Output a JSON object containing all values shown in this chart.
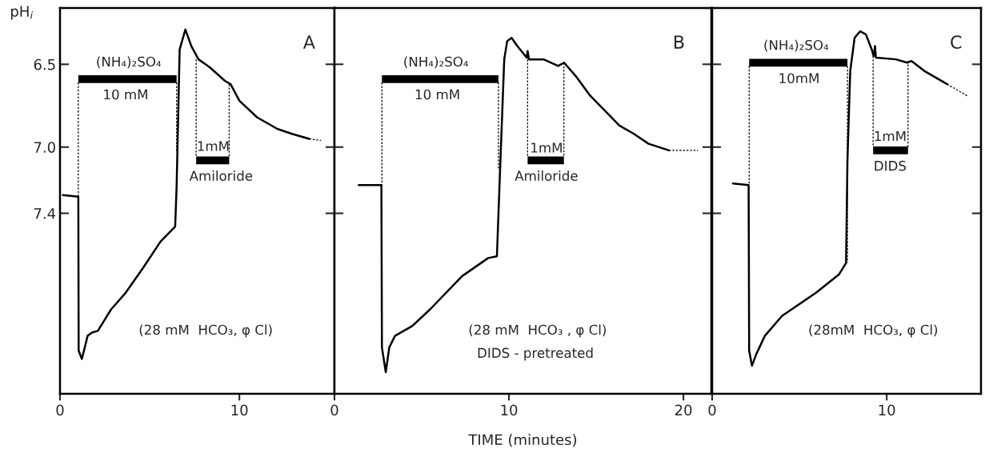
{
  "chart_data": [
    {
      "type": "line",
      "title": "A",
      "ylabel": "pH$_{i}$",
      "xlim": [
        0,
        15.3
      ],
      "ylim": [
        8.49,
        6.16
      ],
      "xticks": [
        0,
        10
      ],
      "yticks": [
        6.5,
        {
          "value": 7.0,
          "label": "7.0"
        },
        7.4
      ],
      "series": [
        {
          "color": "#000000",
          "line_style": "solid",
          "x": [
            0.16,
            1.02,
            1.04,
            1.22,
            1.54,
            1.79,
            2.11,
            2.85,
            3.66,
            4.63,
            5.61,
            6.42,
            6.5,
            6.67,
            6.99,
            7.32,
            7.72,
            8.37,
            9.19,
            9.51,
            10.0,
            10.98,
            12.11,
            12.93,
            13.9
          ],
          "values": [
            7.29,
            7.3,
            8.23,
            8.28,
            8.14,
            8.12,
            8.11,
            7.98,
            7.88,
            7.73,
            7.57,
            7.48,
            7.24,
            6.41,
            6.29,
            6.39,
            6.47,
            6.52,
            6.6,
            6.62,
            6.72,
            6.82,
            6.89,
            6.92,
            6.95
          ]
        },
        {
          "color": "#000000",
          "line_style": "dashed",
          "x": [
            13.9,
            14.55
          ],
          "values": [
            6.95,
            6.96
          ]
        },
        {
          "color": "#000000",
          "line_style": "solid",
          "x": [
            1.02,
            6.5
          ],
          "values": [
            6.59,
            6.59
          ]
        },
        {
          "color": "#000000",
          "line_style": "solid",
          "x": [
            7.59,
            9.43
          ],
          "values": [
            7.08,
            7.08
          ]
        },
        {
          "color": "#000000",
          "line_style": "dashed",
          "x": [
            1.02,
            1.02
          ],
          "values": [
            6.61,
            7.3
          ]
        },
        {
          "color": "#000000",
          "line_style": "dashed",
          "x": [
            6.5,
            6.5
          ],
          "values": [
            6.61,
            7.03
          ]
        },
        {
          "color": "#000000",
          "line_style": "dashed",
          "x": [
            7.59,
            7.59
          ],
          "values": [
            6.47,
            7.06
          ]
        },
        {
          "color": "#000000",
          "line_style": "dashed",
          "x": [
            9.43,
            9.43
          ],
          "values": [
            6.62,
            7.06
          ]
        }
      ],
      "annotations": [
        "(NH₄)₂SO₄",
        "10 mM",
        "1mM",
        "Amiloride",
        "(28 mM  HCO₃, φ Cl)"
      ]
    },
    {
      "type": "line",
      "title": "B",
      "xlabel": "TIME (minutes)",
      "xlim": [
        0,
        21.6
      ],
      "ylim": [
        8.49,
        6.16
      ],
      "xticks": [
        0,
        10,
        20
      ],
      "yticks": [
        {
          "value": 6.5,
          "label": null
        },
        {
          "value": 7.0,
          "label": null
        },
        {
          "value": 7.4,
          "label": null
        }
      ],
      "tick_labels": "x",
      "series": [
        {
          "color": "#000000",
          "line_style": "solid",
          "x": [
            1.39,
            2.69,
            2.72,
            2.94,
            3.14,
            3.47,
            4.47,
            5.48,
            7.31,
            8.81,
            9.31,
            9.48,
            9.73,
            9.9,
            10.15,
            10.48,
            11.02,
            11.07,
            11.15,
            11.98,
            12.82,
            13.16,
            13.82,
            14.66,
            16.33,
            17.16,
            18.0,
            19.17
          ],
          "values": [
            7.23,
            7.23,
            8.21,
            8.36,
            8.21,
            8.14,
            8.08,
            7.98,
            7.78,
            7.67,
            7.66,
            7.17,
            6.47,
            6.36,
            6.34,
            6.39,
            6.46,
            6.42,
            6.47,
            6.47,
            6.51,
            6.49,
            6.57,
            6.69,
            6.87,
            6.92,
            6.98,
            7.02
          ]
        },
        {
          "color": "#000000",
          "line_style": "dashed",
          "x": [
            19.17,
            20.83
          ],
          "values": [
            7.02,
            7.02
          ]
        },
        {
          "color": "#000000",
          "line_style": "solid",
          "x": [
            2.72,
            9.4
          ],
          "values": [
            6.59,
            6.59
          ]
        },
        {
          "color": "#000000",
          "line_style": "solid",
          "x": [
            11.07,
            13.15
          ],
          "values": [
            7.08,
            7.08
          ]
        },
        {
          "color": "#000000",
          "line_style": "dashed",
          "x": [
            2.72,
            2.72
          ],
          "values": [
            6.61,
            7.23
          ]
        },
        {
          "color": "#000000",
          "line_style": "dashed",
          "x": [
            9.4,
            9.4
          ],
          "values": [
            6.61,
            7.13
          ]
        },
        {
          "color": "#000000",
          "line_style": "dashed",
          "x": [
            11.07,
            11.07
          ],
          "values": [
            6.47,
            7.06
          ]
        },
        {
          "color": "#000000",
          "line_style": "dashed",
          "x": [
            13.15,
            13.15
          ],
          "values": [
            6.49,
            7.06
          ]
        }
      ],
      "annotations": [
        "(NH₄)₂SO₄",
        "10 mM",
        "1mM",
        "Amiloride",
        "(28 mM  HCO₃ , φ Cl)",
        "DIDS - pretreated"
      ]
    },
    {
      "type": "line",
      "title": "C",
      "xlim": [
        0,
        15.4
      ],
      "ylim": [
        8.49,
        6.16
      ],
      "xticks": [
        0,
        10
      ],
      "yticks": [
        {
          "value": 6.5,
          "label": null
        },
        {
          "value": 7.0,
          "label": null
        },
        {
          "value": 7.4,
          "label": null
        }
      ],
      "tick_labels": "x",
      "series": [
        {
          "color": "#000000",
          "line_style": "solid",
          "x": [
            1.19,
            2.09,
            2.12,
            2.28,
            2.53,
            3.02,
            4.0,
            5.95,
            7.26,
            7.67,
            7.75,
            7.91,
            8.16,
            8.48,
            8.81,
            9.14,
            9.25,
            9.33,
            9.38,
            10.52,
            11.17,
            11.42,
            12.15,
            13.46
          ],
          "values": [
            7.22,
            7.23,
            8.23,
            8.32,
            8.25,
            8.14,
            8.02,
            7.88,
            7.77,
            7.7,
            7.08,
            6.54,
            6.34,
            6.3,
            6.32,
            6.41,
            6.45,
            6.39,
            6.46,
            6.47,
            6.49,
            6.48,
            6.54,
            6.62
          ]
        },
        {
          "color": "#000000",
          "line_style": "dashed",
          "x": [
            13.46,
            14.6
          ],
          "values": [
            6.62,
            6.69
          ]
        },
        {
          "color": "#000000",
          "line_style": "solid",
          "x": [
            2.12,
            7.75
          ],
          "values": [
            6.49,
            6.49
          ]
        },
        {
          "color": "#000000",
          "line_style": "solid",
          "x": [
            9.22,
            11.22
          ],
          "values": [
            7.02,
            7.02
          ]
        },
        {
          "color": "#000000",
          "line_style": "dashed",
          "x": [
            2.12,
            2.12
          ],
          "values": [
            6.51,
            7.23
          ]
        },
        {
          "color": "#000000",
          "line_style": "dashed",
          "x": [
            7.75,
            7.75
          ],
          "values": [
            6.51,
            7.7
          ]
        },
        {
          "color": "#000000",
          "line_style": "dashed",
          "x": [
            9.22,
            9.22
          ],
          "values": [
            6.45,
            7.0
          ]
        },
        {
          "color": "#000000",
          "line_style": "dashed",
          "x": [
            11.22,
            11.22
          ],
          "values": [
            6.48,
            7.0
          ]
        }
      ],
      "annotations": [
        "(NH₄)₂SO₄",
        "10mM",
        "1mM",
        "DIDS",
        "(28mM  HCO₃, φ Cl)"
      ]
    }
  ]
}
